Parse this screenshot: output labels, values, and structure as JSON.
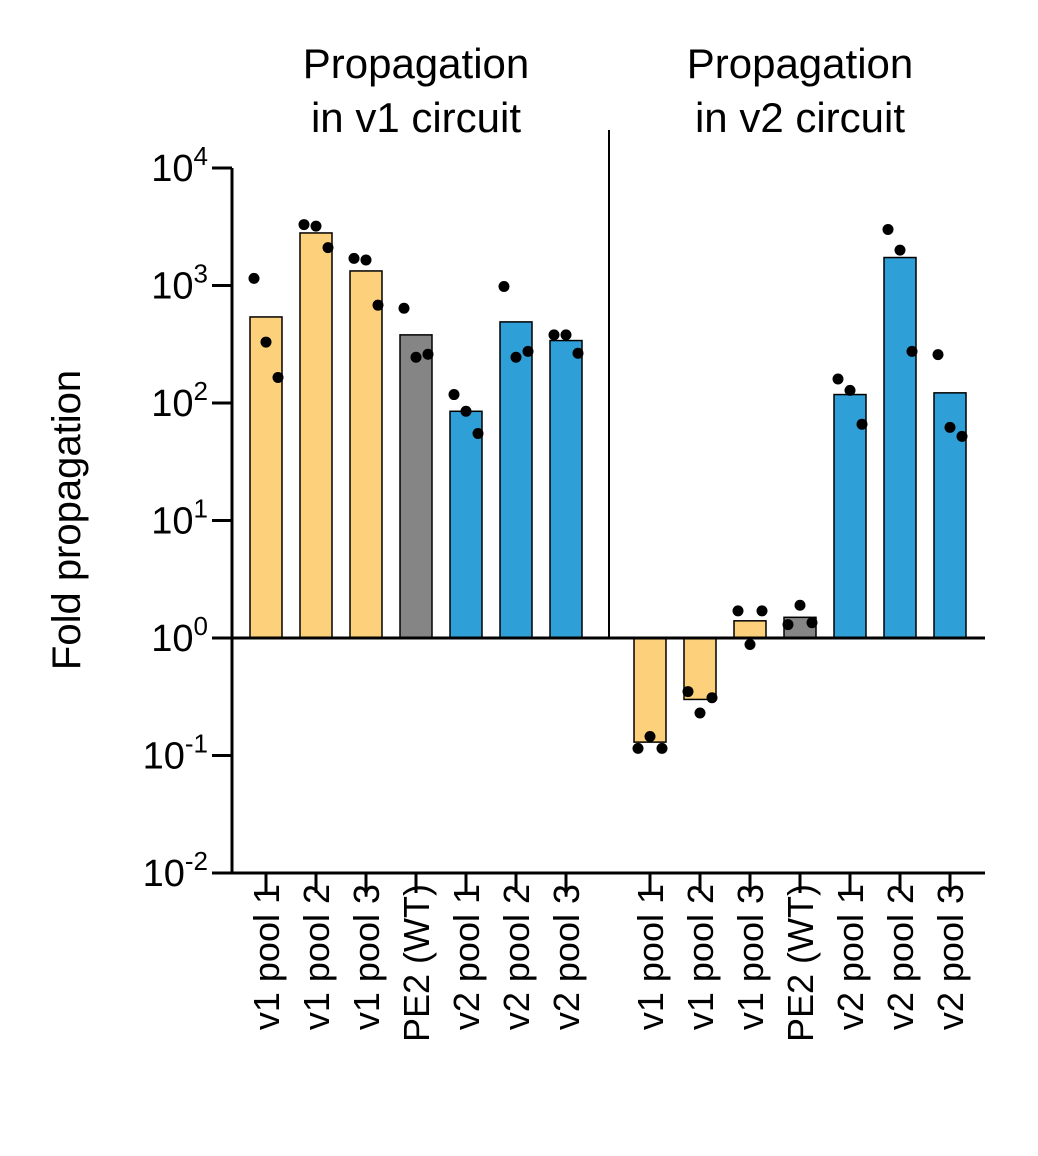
{
  "chart_data": {
    "type": "bar",
    "scale": "log",
    "ylabel": "Fold propagation",
    "ylim": [
      0.01,
      10000
    ],
    "yticks": [
      {
        "value": 10000,
        "base": "10",
        "exp": "4"
      },
      {
        "value": 1000,
        "base": "10",
        "exp": "3"
      },
      {
        "value": 100,
        "base": "10",
        "exp": "2"
      },
      {
        "value": 10,
        "base": "10",
        "exp": "1"
      },
      {
        "value": 1,
        "base": "10",
        "exp": "0"
      },
      {
        "value": 0.1,
        "base": "10",
        "exp": "-1"
      },
      {
        "value": 0.01,
        "base": "10",
        "exp": "-2"
      }
    ],
    "bar_baseline": 1,
    "colors": {
      "v1": "#fdd17c",
      "wt": "#858585",
      "v2": "#2f9fd8"
    },
    "panels": [
      {
        "title_lines": [
          "Propagation",
          "in v1 circuit"
        ],
        "bars": [
          {
            "label": "v1 pool 1",
            "group": "v1",
            "value": 540,
            "points": [
              1150,
              330,
              165
            ]
          },
          {
            "label": "v1 pool 2",
            "group": "v1",
            "value": 2800,
            "points": [
              3300,
              3200,
              2100
            ]
          },
          {
            "label": "v1 pool 3",
            "group": "v1",
            "value": 1330,
            "points": [
              1700,
              1650,
              680
            ]
          },
          {
            "label": "PE2 (WT)",
            "group": "wt",
            "value": 380,
            "points": [
              640,
              245,
              260
            ]
          },
          {
            "label": "v2 pool 1",
            "group": "v2",
            "value": 85,
            "points": [
              118,
              85,
              55
            ]
          },
          {
            "label": "v2 pool 2",
            "group": "v2",
            "value": 490,
            "points": [
              980,
              245,
              275
            ]
          },
          {
            "label": "v2 pool 3",
            "group": "v2",
            "value": 340,
            "points": [
              380,
              380,
              265
            ]
          }
        ]
      },
      {
        "title_lines": [
          "Propagation",
          "in v2 circuit"
        ],
        "bars": [
          {
            "label": "v1 pool 1",
            "group": "v1",
            "value": 0.13,
            "points": [
              0.115,
              0.145,
              0.115
            ]
          },
          {
            "label": "v1 pool 2",
            "group": "v1",
            "value": 0.3,
            "points": [
              0.35,
              0.23,
              0.31
            ]
          },
          {
            "label": "v1 pool 3",
            "group": "v1",
            "value": 1.4,
            "points": [
              1.7,
              0.88,
              1.7
            ]
          },
          {
            "label": "PE2 (WT)",
            "group": "wt",
            "value": 1.5,
            "points": [
              1.3,
              1.9,
              1.35
            ]
          },
          {
            "label": "v2 pool 1",
            "group": "v2",
            "value": 118,
            "points": [
              160,
              128,
              66
            ]
          },
          {
            "label": "v2 pool 2",
            "group": "v2",
            "value": 1730,
            "points": [
              3000,
              2000,
              275
            ]
          },
          {
            "label": "v2 pool 3",
            "group": "v2",
            "value": 122,
            "points": [
              258,
              62,
              52
            ]
          }
        ]
      }
    ]
  }
}
